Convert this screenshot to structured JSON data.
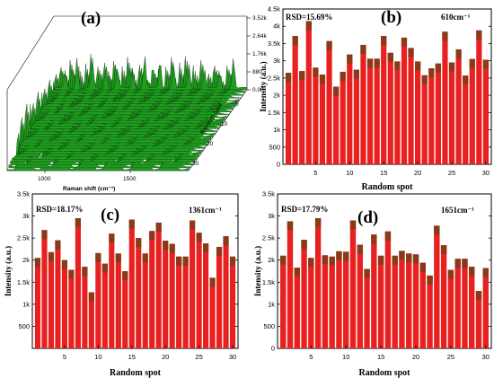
{
  "panel_a": {
    "label": "(a)",
    "z_ticks": [
      "3.52k",
      "2.64k",
      "1.76k",
      "880",
      "0.00"
    ],
    "x_ticks": [
      "1000",
      "1500"
    ],
    "x_title": "Raman shift (cm⁻¹)",
    "depth_title": "Random Spot",
    "depth_ticks": [
      "0",
      "10",
      "20",
      "30"
    ]
  },
  "chart_data": [
    {
      "id": "b",
      "type": "bar",
      "label": "(b)",
      "rsd": "RSD=15.69%",
      "wavenumber": "610cm⁻¹",
      "xlabel": "Random spot",
      "ylabel": "Intensity (a.u.)",
      "x": [
        1,
        2,
        3,
        4,
        5,
        6,
        7,
        8,
        9,
        10,
        11,
        12,
        13,
        14,
        15,
        16,
        17,
        18,
        19,
        20,
        21,
        22,
        23,
        24,
        25,
        26,
        27,
        28,
        29,
        30
      ],
      "values": [
        2650,
        3720,
        2700,
        4150,
        2800,
        2600,
        3570,
        2250,
        2680,
        3180,
        2740,
        3460,
        3060,
        3060,
        3720,
        3230,
        2980,
        3670,
        3370,
        2980,
        2580,
        2780,
        2920,
        3840,
        2950,
        3330,
        2570,
        3050,
        3880,
        3030
      ],
      "ylim": [
        0,
        4500
      ],
      "yticks": [
        0,
        500,
        1000,
        1500,
        2000,
        2500,
        3000,
        3500,
        4000,
        4500
      ],
      "ytick_labels": [
        "0",
        "500",
        "1k",
        "1.5k",
        "2k",
        "2.5k",
        "3k",
        "3.5k",
        "4k",
        "4.5k"
      ],
      "xticks": [
        5,
        10,
        15,
        20,
        25,
        30
      ]
    },
    {
      "id": "c",
      "type": "bar",
      "label": "(c)",
      "rsd": "RSD=18.17%",
      "wavenumber": "1361cm⁻¹",
      "xlabel": "Random spot",
      "ylabel": "Intensity (a.u.)",
      "x": [
        1,
        2,
        3,
        4,
        5,
        6,
        7,
        8,
        9,
        10,
        11,
        12,
        13,
        14,
        15,
        16,
        17,
        18,
        19,
        20,
        21,
        22,
        23,
        24,
        25,
        26,
        27,
        28,
        29,
        30
      ],
      "values": [
        2050,
        2680,
        2180,
        2450,
        2000,
        1780,
        2950,
        1850,
        1270,
        2160,
        1920,
        2600,
        2150,
        1750,
        2920,
        2500,
        2150,
        2660,
        2850,
        2440,
        2370,
        2080,
        2080,
        2900,
        2620,
        2380,
        1600,
        2300,
        2540,
        2080
      ],
      "ylim": [
        0,
        3500
      ],
      "yticks": [
        500,
        1000,
        1500,
        2000,
        2500,
        3000,
        3500
      ],
      "ytick_labels": [
        "500",
        "1k",
        "1.5k",
        "2k",
        "2.5k",
        "3k",
        "3.5k"
      ],
      "xticks": [
        5,
        10,
        15,
        20,
        25,
        30
      ]
    },
    {
      "id": "d",
      "type": "bar",
      "label": "(d)",
      "rsd": "RSD=17.79%",
      "wavenumber": "1651cm⁻¹",
      "xlabel": "Random spot",
      "ylabel": "Intensity (a.u.)",
      "x": [
        1,
        2,
        3,
        4,
        5,
        6,
        7,
        8,
        9,
        10,
        11,
        12,
        13,
        14,
        15,
        16,
        17,
        18,
        19,
        20,
        21,
        22,
        23,
        24,
        25,
        26,
        27,
        28,
        29,
        30
      ],
      "values": [
        2100,
        2880,
        1830,
        2460,
        2050,
        2950,
        2110,
        2080,
        2200,
        2190,
        2900,
        2350,
        1800,
        2580,
        2100,
        2650,
        2100,
        2210,
        2150,
        2130,
        1940,
        1650,
        2780,
        2340,
        1780,
        2030,
        2030,
        1850,
        1300,
        1820
      ],
      "ylim": [
        0,
        3500
      ],
      "yticks": [
        0,
        500,
        1000,
        1500,
        2000,
        2500,
        3000,
        3500
      ],
      "ytick_labels": [
        "0",
        "500",
        "1k",
        "1.5k",
        "2k",
        "2.5k",
        "3k",
        "3.5k"
      ],
      "xticks": [
        5,
        10,
        15,
        20,
        25,
        30
      ]
    }
  ],
  "colors": {
    "bar": "#e82020",
    "bar_top": "#8a3a18",
    "spectrum_fill": "#1f9e1f",
    "spectrum_edge": "#0a2a0a",
    "axis": "#000000"
  }
}
